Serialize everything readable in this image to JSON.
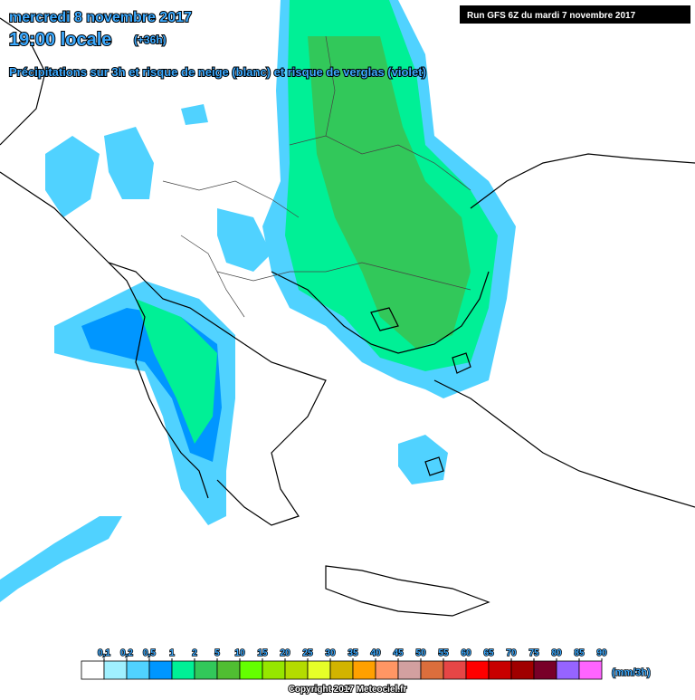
{
  "header": {
    "date": "mercredi 8 novembre 2017",
    "time": "19:00 locale",
    "lead": "(+36h)",
    "subtitle": "Précipitations sur 3h et risque de neige (blanc) et risque de verglas (violet)",
    "run": "Run GFS 6Z du mardi 7 novembre 2017"
  },
  "legend": {
    "ticks": [
      {
        "value": 0.1,
        "label": "0,1"
      },
      {
        "value": 0.2,
        "label": "0,2"
      },
      {
        "value": 0.5,
        "label": "0,5"
      },
      1,
      2,
      5,
      10,
      15,
      20,
      25,
      30,
      35,
      40,
      45,
      50,
      55,
      60,
      65,
      70,
      75,
      80,
      85,
      90
    ],
    "colors": [
      "#ffffff",
      "#a0f0ff",
      "#50d2ff",
      "#0096ff",
      "#00f096",
      "#32c85a",
      "#50be32",
      "#64ff00",
      "#96e600",
      "#b4dc00",
      "#e6ff28",
      "#d2b400",
      "#ffa000",
      "#ff9664",
      "#d2a0a0",
      "#dc6e3c",
      "#e64646",
      "#ff0000",
      "#c80000",
      "#a00000",
      "#780028",
      "#9664ff",
      "#ff64ff"
    ],
    "unit": "(mm/3h)"
  },
  "footer": {
    "copyright": "Copyright 2017 Meteociel.fr"
  }
}
